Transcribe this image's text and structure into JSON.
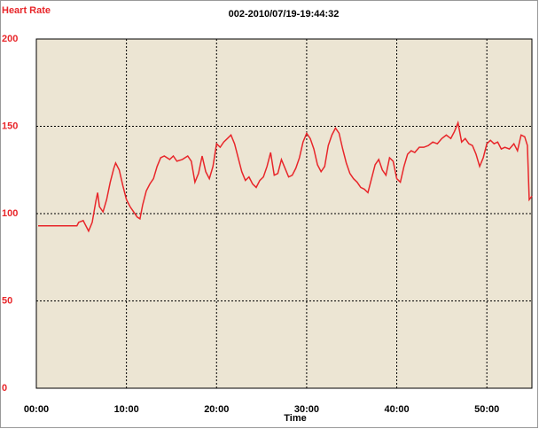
{
  "chart_data": {
    "type": "line",
    "title": "002-2010/07/19-19:44:32",
    "y_label": "Heart Rate",
    "x_label": "Time",
    "xlim": [
      0,
      55
    ],
    "xticks": [
      {
        "value": 0,
        "label": "00:00"
      },
      {
        "value": 10,
        "label": "10:00"
      },
      {
        "value": 20,
        "label": "20:00"
      },
      {
        "value": 30,
        "label": "30:00"
      },
      {
        "value": 40,
        "label": "40:00"
      },
      {
        "value": 50,
        "label": "50:00"
      }
    ],
    "ylim": [
      0,
      200
    ],
    "yticks": [
      0,
      50,
      100,
      150,
      200
    ],
    "grid": true,
    "series": [
      {
        "name": "Heart Rate",
        "color": "#e8262a",
        "x": [
          0.2,
          4.5,
          4.7,
          5.2,
          5.6,
          5.8,
          6.2,
          6.6,
          6.8,
          7.0,
          7.4,
          7.8,
          8.2,
          8.6,
          8.8,
          9.2,
          9.6,
          10.0,
          10.4,
          10.8,
          11.2,
          11.5,
          11.8,
          12.2,
          12.6,
          13.0,
          13.4,
          13.8,
          14.2,
          14.8,
          15.2,
          15.6,
          16.2,
          16.8,
          17.2,
          17.6,
          18.0,
          18.4,
          18.8,
          19.2,
          19.6,
          20.0,
          20.4,
          20.8,
          21.2,
          21.6,
          22.0,
          22.4,
          22.8,
          23.2,
          23.6,
          24.0,
          24.4,
          24.8,
          25.2,
          25.6,
          26.0,
          26.4,
          26.8,
          27.2,
          27.6,
          28.0,
          28.4,
          28.8,
          29.2,
          29.6,
          30.0,
          30.4,
          30.8,
          31.2,
          31.6,
          32.0,
          32.4,
          32.8,
          33.2,
          33.6,
          34.0,
          34.4,
          34.8,
          35.2,
          35.6,
          36.0,
          36.4,
          36.8,
          37.2,
          37.6,
          38.0,
          38.4,
          38.8,
          39.2,
          39.6,
          40.0,
          40.4,
          40.8,
          41.2,
          41.6,
          42.0,
          42.5,
          43.0,
          43.5,
          44.0,
          44.5,
          45.0,
          45.5,
          46.0,
          46.4,
          46.8,
          47.2,
          47.6,
          48.0,
          48.4,
          48.8,
          49.2,
          49.6,
          50.0,
          50.4,
          50.8,
          51.2,
          51.6,
          52.0,
          52.5,
          53.0,
          53.4,
          53.8,
          54.2,
          54.5,
          54.7,
          55.0
        ],
        "values": [
          93,
          93,
          95,
          96,
          92,
          90,
          95,
          107,
          112,
          104,
          101,
          108,
          118,
          126,
          129,
          125,
          116,
          108,
          104,
          101,
          98,
          97,
          105,
          113,
          117,
          120,
          127,
          132,
          133,
          131,
          133,
          130,
          131,
          133,
          130,
          118,
          123,
          133,
          124,
          120,
          127,
          140,
          138,
          141,
          143,
          145,
          140,
          132,
          124,
          119,
          121,
          117,
          115,
          119,
          121,
          127,
          135,
          122,
          123,
          131,
          126,
          121,
          122,
          126,
          132,
          141,
          146,
          143,
          137,
          128,
          124,
          127,
          139,
          145,
          149,
          146,
          137,
          129,
          123,
          120,
          118,
          115,
          114,
          112,
          120,
          128,
          131,
          125,
          122,
          132,
          130,
          120,
          118,
          127,
          134,
          136,
          135,
          138,
          138,
          139,
          141,
          140,
          143,
          145,
          143,
          147,
          152,
          141,
          143,
          140,
          139,
          134,
          127,
          132,
          140,
          142,
          140,
          141,
          137,
          138,
          137,
          140,
          136,
          145,
          144,
          139,
          108,
          110
        ]
      }
    ]
  }
}
